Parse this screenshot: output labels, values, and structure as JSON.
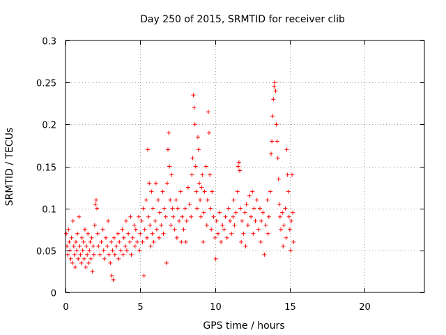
{
  "chart_data": {
    "type": "scatter",
    "title": "Day 250 of 2015, SRMTID for receiver clib",
    "xlabel": "GPS time / hours",
    "ylabel": "SRMTID / TECUs",
    "xlim": [
      0,
      24
    ],
    "ylim": [
      0,
      0.3
    ],
    "xticks": [
      0,
      5,
      10,
      15,
      20
    ],
    "yticks": [
      0,
      0.05,
      0.1,
      0.15,
      0.2,
      0.25,
      0.3
    ],
    "xtick_labels": [
      "0",
      "5",
      "10",
      "15",
      "20"
    ],
    "ytick_labels": [
      "0",
      "0.05",
      "0.1",
      "0.15",
      "0.2",
      "0.25",
      "0.3"
    ],
    "grid": true,
    "marker": "+",
    "color": "#ff0000",
    "series": [
      {
        "name": "SRMTID",
        "points": [
          [
            0.05,
            0.07
          ],
          [
            0.1,
            0.055
          ],
          [
            0.15,
            0.045
          ],
          [
            0.2,
            0.075
          ],
          [
            0.25,
            0.06
          ],
          [
            0.3,
            0.05
          ],
          [
            0.35,
            0.04
          ],
          [
            0.4,
            0.065
          ],
          [
            0.45,
            0.035
          ],
          [
            0.5,
            0.085
          ],
          [
            0.55,
            0.055
          ],
          [
            0.6,
            0.045
          ],
          [
            0.65,
            0.03
          ],
          [
            0.7,
            0.06
          ],
          [
            0.75,
            0.05
          ],
          [
            0.8,
            0.07
          ],
          [
            0.85,
            0.04
          ],
          [
            0.9,
            0.09
          ],
          [
            0.95,
            0.055
          ],
          [
            1.0,
            0.045
          ],
          [
            1.05,
            0.035
          ],
          [
            1.1,
            0.065
          ],
          [
            1.15,
            0.05
          ],
          [
            1.2,
            0.06
          ],
          [
            1.25,
            0.04
          ],
          [
            1.3,
            0.075
          ],
          [
            1.35,
            0.03
          ],
          [
            1.4,
            0.055
          ],
          [
            1.45,
            0.045
          ],
          [
            1.5,
            0.07
          ],
          [
            1.55,
            0.035
          ],
          [
            1.6,
            0.05
          ],
          [
            1.65,
            0.06
          ],
          [
            1.7,
            0.04
          ],
          [
            1.75,
            0.065
          ],
          [
            1.8,
            0.025
          ],
          [
            1.85,
            0.055
          ],
          [
            1.9,
            0.045
          ],
          [
            1.95,
            0.08
          ],
          [
            2.0,
            0.105
          ],
          [
            2.05,
            0.11
          ],
          [
            2.1,
            0.1
          ],
          [
            2.15,
            0.07
          ],
          [
            2.2,
            0.055
          ],
          [
            2.3,
            0.045
          ],
          [
            2.4,
            0.06
          ],
          [
            2.5,
            0.075
          ],
          [
            2.55,
            0.05
          ],
          [
            2.6,
            0.04
          ],
          [
            2.7,
            0.065
          ],
          [
            2.8,
            0.055
          ],
          [
            2.85,
            0.085
          ],
          [
            2.9,
            0.045
          ],
          [
            3.0,
            0.035
          ],
          [
            3.05,
            0.06
          ],
          [
            3.1,
            0.02
          ],
          [
            3.15,
            0.05
          ],
          [
            3.2,
            0.015
          ],
          [
            3.25,
            0.065
          ],
          [
            3.3,
            0.045
          ],
          [
            3.4,
            0.055
          ],
          [
            3.5,
            0.07
          ],
          [
            3.55,
            0.04
          ],
          [
            3.6,
            0.06
          ],
          [
            3.7,
            0.05
          ],
          [
            3.8,
            0.075
          ],
          [
            3.85,
            0.045
          ],
          [
            3.9,
            0.065
          ],
          [
            4.0,
            0.055
          ],
          [
            4.05,
            0.085
          ],
          [
            4.1,
            0.05
          ],
          [
            4.2,
            0.07
          ],
          [
            4.3,
            0.06
          ],
          [
            4.35,
            0.09
          ],
          [
            4.4,
            0.045
          ],
          [
            4.5,
            0.065
          ],
          [
            4.6,
            0.08
          ],
          [
            4.65,
            0.055
          ],
          [
            4.7,
            0.075
          ],
          [
            4.8,
            0.06
          ],
          [
            4.9,
            0.09
          ],
          [
            4.95,
            0.05
          ],
          [
            5.0,
            0.07
          ],
          [
            5.1,
            0.085
          ],
          [
            5.15,
            0.06
          ],
          [
            5.2,
            0.1
          ],
          [
            5.25,
            0.02
          ],
          [
            5.3,
            0.075
          ],
          [
            5.4,
            0.11
          ],
          [
            5.45,
            0.065
          ],
          [
            5.5,
            0.17
          ],
          [
            5.55,
            0.09
          ],
          [
            5.6,
            0.13
          ],
          [
            5.65,
            0.08
          ],
          [
            5.7,
            0.055
          ],
          [
            5.75,
            0.12
          ],
          [
            5.8,
            0.07
          ],
          [
            5.85,
            0.1
          ],
          [
            5.9,
            0.06
          ],
          [
            6.0,
            0.085
          ],
          [
            6.05,
            0.13
          ],
          [
            6.1,
            0.075
          ],
          [
            6.2,
            0.11
          ],
          [
            6.25,
            0.065
          ],
          [
            6.3,
            0.095
          ],
          [
            6.4,
            0.08
          ],
          [
            6.5,
            0.12
          ],
          [
            6.55,
            0.07
          ],
          [
            6.6,
            0.1
          ],
          [
            6.7,
            0.09
          ],
          [
            6.75,
            0.035
          ],
          [
            6.8,
            0.13
          ],
          [
            6.85,
            0.17
          ],
          [
            6.9,
            0.19
          ],
          [
            6.95,
            0.15
          ],
          [
            7.0,
            0.11
          ],
          [
            7.05,
            0.08
          ],
          [
            7.1,
            0.14
          ],
          [
            7.15,
            0.1
          ],
          [
            7.2,
            0.09
          ],
          [
            7.3,
            0.075
          ],
          [
            7.4,
            0.11
          ],
          [
            7.45,
            0.065
          ],
          [
            7.5,
            0.1
          ],
          [
            7.6,
            0.085
          ],
          [
            7.7,
            0.12
          ],
          [
            7.75,
            0.06
          ],
          [
            7.8,
            0.09
          ],
          [
            7.9,
            0.075
          ],
          [
            8.0,
            0.1
          ],
          [
            8.05,
            0.06
          ],
          [
            8.1,
            0.085
          ],
          [
            8.2,
            0.125
          ],
          [
            8.3,
            0.105
          ],
          [
            8.4,
            0.09
          ],
          [
            8.45,
            0.14
          ],
          [
            8.5,
            0.16
          ],
          [
            8.55,
            0.235
          ],
          [
            8.6,
            0.22
          ],
          [
            8.65,
            0.2
          ],
          [
            8.7,
            0.15
          ],
          [
            8.75,
            0.12
          ],
          [
            8.8,
            0.1
          ],
          [
            8.85,
            0.185
          ],
          [
            8.9,
            0.17
          ],
          [
            8.95,
            0.13
          ],
          [
            9.0,
            0.11
          ],
          [
            9.05,
            0.09
          ],
          [
            9.1,
            0.125
          ],
          [
            9.15,
            0.14
          ],
          [
            9.2,
            0.06
          ],
          [
            9.25,
            0.095
          ],
          [
            9.3,
            0.12
          ],
          [
            9.4,
            0.15
          ],
          [
            9.45,
            0.08
          ],
          [
            9.5,
            0.11
          ],
          [
            9.55,
            0.215
          ],
          [
            9.6,
            0.19
          ],
          [
            9.65,
            0.14
          ],
          [
            9.7,
            0.1
          ],
          [
            9.75,
            0.075
          ],
          [
            9.8,
            0.12
          ],
          [
            9.9,
            0.09
          ],
          [
            10.0,
            0.065
          ],
          [
            10.05,
            0.04
          ],
          [
            10.1,
            0.085
          ],
          [
            10.2,
            0.07
          ],
          [
            10.3,
            0.095
          ],
          [
            10.4,
            0.06
          ],
          [
            10.5,
            0.08
          ],
          [
            10.6,
            0.075
          ],
          [
            10.7,
            0.09
          ],
          [
            10.8,
            0.065
          ],
          [
            10.9,
            0.1
          ],
          [
            11.0,
            0.085
          ],
          [
            11.1,
            0.07
          ],
          [
            11.2,
            0.09
          ],
          [
            11.25,
            0.11
          ],
          [
            11.3,
            0.08
          ],
          [
            11.4,
            0.095
          ],
          [
            11.5,
            0.12
          ],
          [
            11.55,
            0.15
          ],
          [
            11.6,
            0.155
          ],
          [
            11.65,
            0.145
          ],
          [
            11.7,
            0.1
          ],
          [
            11.75,
            0.06
          ],
          [
            11.8,
            0.085
          ],
          [
            11.9,
            0.07
          ],
          [
            12.0,
            0.095
          ],
          [
            12.05,
            0.055
          ],
          [
            12.1,
            0.105
          ],
          [
            12.2,
            0.08
          ],
          [
            12.3,
            0.115
          ],
          [
            12.4,
            0.09
          ],
          [
            12.5,
            0.12
          ],
          [
            12.55,
            0.07
          ],
          [
            12.6,
            0.1
          ],
          [
            12.7,
            0.085
          ],
          [
            12.8,
            0.11
          ],
          [
            12.9,
            0.075
          ],
          [
            13.0,
            0.1
          ],
          [
            13.05,
            0.06
          ],
          [
            13.1,
            0.085
          ],
          [
            13.2,
            0.095
          ],
          [
            13.3,
            0.045
          ],
          [
            13.4,
            0.08
          ],
          [
            13.5,
            0.11
          ],
          [
            13.55,
            0.07
          ],
          [
            13.6,
            0.09
          ],
          [
            13.7,
            0.12
          ],
          [
            13.75,
            0.165
          ],
          [
            13.8,
            0.18
          ],
          [
            13.85,
            0.21
          ],
          [
            13.9,
            0.23
          ],
          [
            13.95,
            0.245
          ],
          [
            14.0,
            0.25
          ],
          [
            14.05,
            0.24
          ],
          [
            14.1,
            0.2
          ],
          [
            14.15,
            0.18
          ],
          [
            14.2,
            0.16
          ],
          [
            14.25,
            0.135
          ],
          [
            14.3,
            0.105
          ],
          [
            14.35,
            0.09
          ],
          [
            14.4,
            0.075
          ],
          [
            14.5,
            0.095
          ],
          [
            14.55,
            0.055
          ],
          [
            14.6,
            0.08
          ],
          [
            14.7,
            0.1
          ],
          [
            14.75,
            0.065
          ],
          [
            14.8,
            0.17
          ],
          [
            14.85,
            0.14
          ],
          [
            14.9,
            0.12
          ],
          [
            14.95,
            0.09
          ],
          [
            15.0,
            0.075
          ],
          [
            15.05,
            0.05
          ],
          [
            15.1,
            0.085
          ],
          [
            15.15,
            0.14
          ],
          [
            15.2,
            0.095
          ],
          [
            15.25,
            0.06
          ]
        ]
      }
    ]
  }
}
